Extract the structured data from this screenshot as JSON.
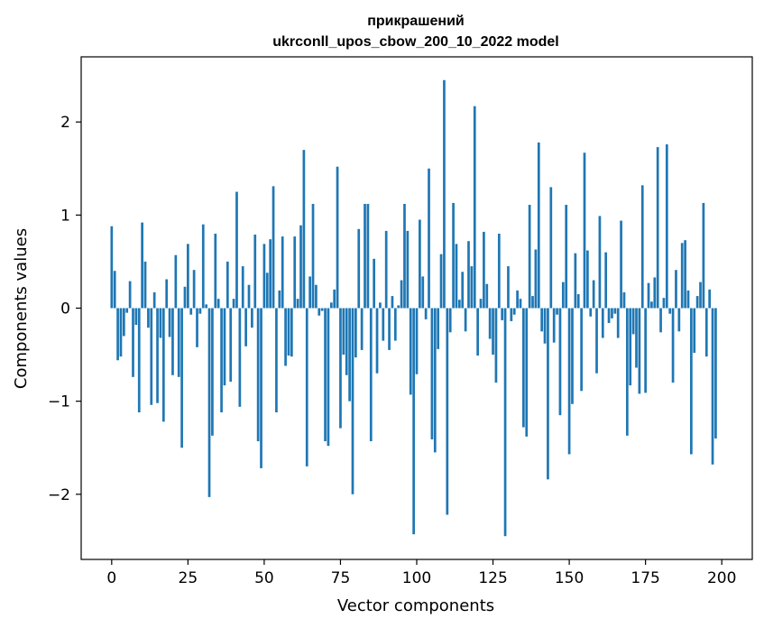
{
  "chart_data": {
    "type": "bar",
    "title_line1": "прикрашений",
    "title_line2": "ukrconll_upos_cbow_200_10_2022 model",
    "xlabel": "Vector components",
    "ylabel": "Components values",
    "xlim": [
      -10,
      210
    ],
    "ylim": [
      -2.7,
      2.7
    ],
    "xticks": [
      0,
      25,
      50,
      75,
      100,
      125,
      150,
      175,
      200
    ],
    "xtick_labels": [
      "0",
      "25",
      "50",
      "75",
      "100",
      "125",
      "150",
      "175",
      "200"
    ],
    "yticks": [
      -2,
      -1,
      0,
      1,
      2
    ],
    "ytick_labels": [
      "−2",
      "−1",
      "0",
      "1",
      "2"
    ],
    "grid": false,
    "bar_color": "#1f77b4",
    "values": [
      0.88,
      0.4,
      -0.56,
      -0.52,
      -0.3,
      -0.05,
      0.29,
      -0.74,
      -0.18,
      -1.12,
      0.92,
      0.5,
      -0.21,
      -1.04,
      0.17,
      -1.02,
      -0.32,
      -1.22,
      0.31,
      -0.31,
      -0.72,
      0.57,
      -0.74,
      -1.5,
      0.23,
      0.69,
      -0.07,
      0.41,
      -0.42,
      -0.06,
      0.9,
      0.04,
      -2.03,
      -1.37,
      0.8,
      0.1,
      -1.12,
      -0.83,
      0.5,
      -0.79,
      0.1,
      1.25,
      -1.06,
      0.45,
      -0.41,
      0.25,
      -0.21,
      0.79,
      -1.43,
      -1.72,
      0.69,
      0.38,
      0.74,
      1.31,
      -1.12,
      0.19,
      0.77,
      -0.62,
      -0.51,
      -0.52,
      0.77,
      0.1,
      0.89,
      1.7,
      -1.7,
      0.34,
      1.12,
      0.25,
      -0.08,
      -0.03,
      -1.43,
      -1.48,
      0.06,
      0.2,
      1.52,
      -1.29,
      -0.5,
      -0.72,
      -1.0,
      -2.0,
      -0.53,
      0.85,
      -0.45,
      1.12,
      1.12,
      -1.43,
      0.53,
      -0.7,
      0.06,
      -0.35,
      0.83,
      -0.45,
      0.13,
      -0.35,
      0.03,
      0.3,
      1.12,
      0.83,
      -0.93,
      -2.43,
      -0.71,
      0.95,
      0.34,
      -0.12,
      1.5,
      -1.41,
      -1.55,
      -0.44,
      0.58,
      2.45,
      -2.22,
      -0.26,
      1.13,
      0.69,
      0.09,
      0.39,
      -0.25,
      0.72,
      0.45,
      2.17,
      -0.51,
      0.1,
      0.82,
      0.26,
      -0.33,
      -0.5,
      -0.8,
      0.8,
      -0.13,
      -2.45,
      0.45,
      -0.14,
      -0.07,
      0.19,
      0.1,
      -1.28,
      -1.38,
      1.11,
      0.13,
      0.63,
      1.78,
      -0.25,
      -0.38,
      -1.84,
      1.3,
      -0.37,
      -0.07,
      -1.15,
      0.28,
      1.11,
      -1.57,
      -1.03,
      0.59,
      0.15,
      -0.89,
      1.67,
      0.62,
      -0.09,
      0.3,
      -0.7,
      0.99,
      -0.32,
      0.6,
      -0.16,
      -0.11,
      -0.06,
      -0.32,
      0.94,
      0.17,
      -1.37,
      -0.83,
      -0.28,
      -0.64,
      -0.92,
      1.32,
      -0.91,
      0.27,
      0.07,
      0.33,
      1.73,
      -0.26,
      0.11,
      1.76,
      -0.06,
      -0.8,
      0.41,
      -0.25,
      0.7,
      0.73,
      0.19,
      -1.57,
      -0.48,
      0.13,
      0.28,
      1.13,
      -0.52,
      0.2,
      -1.68,
      -1.4
    ]
  }
}
